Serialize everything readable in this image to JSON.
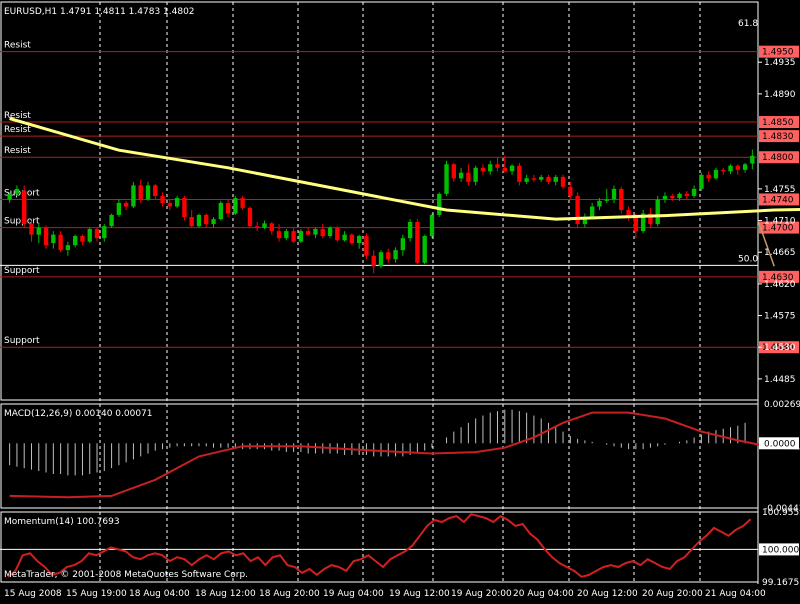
{
  "header": {
    "symbol_info": "EURUSD,H1  1.4791 1.4811 1.4783 1.4802",
    "copyright": "MetaTrader, © 2001-2008 MetaQuotes Software Corp."
  },
  "colors": {
    "background": "#000000",
    "grid": "#ffffff",
    "bull": "#00c000",
    "bear": "#ff0000",
    "sma": "#ffff80",
    "trendline": "#c89860",
    "level_line": "#b02020",
    "macd_hist": "#c0c0c0",
    "macd_signal": "#c82020",
    "momentum": "#d02020",
    "text": "#ffffff",
    "price_tag": "#ff6060",
    "price_tag_text": "#000000"
  },
  "chart_data": [
    {
      "type": "candlestick",
      "panel": "price",
      "ylim": [
        1.4455,
        1.4995
      ],
      "y_ticks": [
        "1.4935",
        "1.4890",
        "1.4755",
        "1.4710",
        "1.4665",
        "1.4620",
        "1.4575",
        "1.4530",
        "1.4485"
      ],
      "fib_labels": [
        "61.8",
        "50.0"
      ],
      "x_ticks": [
        "15 Aug 2008",
        "15 Aug 19:00",
        "18 Aug 04:00",
        "18 Aug 12:00",
        "18 Aug 20:00",
        "19 Aug 04:00",
        "19 Aug 12:00",
        "19 Aug 20:00",
        "20 Aug 04:00",
        "20 Aug 12:00",
        "20 Aug 20:00",
        "21 Aug 04:00"
      ],
      "levels": [
        {
          "label": "Resist",
          "price": 1.495,
          "tag": "1.4950"
        },
        {
          "label": "Resist",
          "price": 1.485,
          "tag": "1.4850"
        },
        {
          "label": "Resist",
          "price": 1.483,
          "tag": "1.4830"
        },
        {
          "label": "Resist",
          "price": 1.48,
          "tag": "1.4800"
        },
        {
          "label": "Support",
          "price": 1.474,
          "tag": "1.4740"
        },
        {
          "label": "Support",
          "price": 1.47,
          "tag": "1.4700"
        },
        {
          "label": "Support",
          "price": 1.463,
          "tag": "1.4630"
        },
        {
          "label": "Support",
          "price": 1.453,
          "tag": "1.4530"
        }
      ],
      "candles": [
        [
          1.474,
          1.475,
          1.4735,
          1.4748
        ],
        [
          1.4748,
          1.476,
          1.4745,
          1.4755
        ],
        [
          1.4752,
          1.476,
          1.47,
          1.4705
        ],
        [
          1.4705,
          1.471,
          1.468,
          1.469
        ],
        [
          1.469,
          1.4705,
          1.4678,
          1.47
        ],
        [
          1.47,
          1.4703,
          1.467,
          1.4675
        ],
        [
          1.4678,
          1.4695,
          1.467,
          1.469
        ],
        [
          1.469,
          1.4695,
          1.4665,
          1.4668
        ],
        [
          1.4668,
          1.468,
          1.466,
          1.4675
        ],
        [
          1.4675,
          1.469,
          1.4672,
          1.4688
        ],
        [
          1.4688,
          1.469,
          1.4675,
          1.468
        ],
        [
          1.468,
          1.47,
          1.4678,
          1.4698
        ],
        [
          1.4698,
          1.47,
          1.468,
          1.4685
        ],
        [
          1.4685,
          1.4705,
          1.468,
          1.4702
        ],
        [
          1.4702,
          1.472,
          1.47,
          1.4718
        ],
        [
          1.4718,
          1.474,
          1.4715,
          1.4735
        ],
        [
          1.4735,
          1.4738,
          1.4725,
          1.473
        ],
        [
          1.473,
          1.4765,
          1.4728,
          1.476
        ],
        [
          1.476,
          1.4768,
          1.4735,
          1.474
        ],
        [
          1.474,
          1.4765,
          1.4738,
          1.476
        ],
        [
          1.476,
          1.4762,
          1.474,
          1.4745
        ],
        [
          1.4745,
          1.475,
          1.473,
          1.4735
        ],
        [
          1.4735,
          1.474,
          1.4725,
          1.473
        ],
        [
          1.473,
          1.4745,
          1.4728,
          1.4742
        ],
        [
          1.4742,
          1.4745,
          1.471,
          1.4715
        ],
        [
          1.4715,
          1.4725,
          1.47,
          1.4702
        ],
        [
          1.4702,
          1.472,
          1.47,
          1.4718
        ],
        [
          1.4718,
          1.472,
          1.47,
          1.4705
        ],
        [
          1.4705,
          1.4715,
          1.47,
          1.4712
        ],
        [
          1.4712,
          1.4738,
          1.471,
          1.4735
        ],
        [
          1.4735,
          1.474,
          1.4715,
          1.472
        ],
        [
          1.472,
          1.4745,
          1.4718,
          1.4742
        ],
        [
          1.4742,
          1.4745,
          1.4725,
          1.4728
        ],
        [
          1.4728,
          1.473,
          1.47,
          1.4702
        ],
        [
          1.4702,
          1.4708,
          1.4695,
          1.47
        ],
        [
          1.47,
          1.471,
          1.4698,
          1.4706
        ],
        [
          1.4706,
          1.4708,
          1.469,
          1.4695
        ],
        [
          1.4695,
          1.4705,
          1.468,
          1.4685
        ],
        [
          1.4685,
          1.4698,
          1.4682,
          1.4695
        ],
        [
          1.4695,
          1.47,
          1.4678,
          1.468
        ],
        [
          1.468,
          1.4698,
          1.4678,
          1.4695
        ],
        [
          1.4695,
          1.47,
          1.4688,
          1.469
        ],
        [
          1.469,
          1.47,
          1.4685,
          1.4698
        ],
        [
          1.4698,
          1.4705,
          1.4685,
          1.4688
        ],
        [
          1.4688,
          1.4702,
          1.4685,
          1.47
        ],
        [
          1.47,
          1.4702,
          1.468,
          1.4682
        ],
        [
          1.4682,
          1.4695,
          1.468,
          1.469
        ],
        [
          1.469,
          1.4692,
          1.4675,
          1.4678
        ],
        [
          1.4678,
          1.469,
          1.467,
          1.4688
        ],
        [
          1.4688,
          1.4692,
          1.4655,
          1.466
        ],
        [
          1.466,
          1.4668,
          1.4635,
          1.4645
        ],
        [
          1.4645,
          1.4668,
          1.4642,
          1.4665
        ],
        [
          1.4665,
          1.467,
          1.465,
          1.4655
        ],
        [
          1.4655,
          1.4672,
          1.465,
          1.4668
        ],
        [
          1.4668,
          1.469,
          1.466,
          1.4685
        ],
        [
          1.4685,
          1.4712,
          1.468,
          1.4708
        ],
        [
          1.4708,
          1.4712,
          1.4648,
          1.465
        ],
        [
          1.465,
          1.469,
          1.4648,
          1.4688
        ],
        [
          1.4688,
          1.472,
          1.4685,
          1.4718
        ],
        [
          1.4718,
          1.475,
          1.4715,
          1.4748
        ],
        [
          1.4748,
          1.4795,
          1.4745,
          1.479
        ],
        [
          1.479,
          1.4792,
          1.4765,
          1.477
        ],
        [
          1.477,
          1.4785,
          1.4765,
          1.4778
        ],
        [
          1.4778,
          1.479,
          1.476,
          1.4765
        ],
        [
          1.4765,
          1.4788,
          1.476,
          1.4785
        ],
        [
          1.4785,
          1.479,
          1.4775,
          1.478
        ],
        [
          1.478,
          1.4795,
          1.4775,
          1.479
        ],
        [
          1.479,
          1.48,
          1.478,
          1.4785
        ],
        [
          1.4785,
          1.4802,
          1.4778,
          1.478
        ],
        [
          1.478,
          1.479,
          1.4775,
          1.4788
        ],
        [
          1.4788,
          1.4792,
          1.476,
          1.4765
        ],
        [
          1.4765,
          1.4775,
          1.4762,
          1.477
        ],
        [
          1.477,
          1.4775,
          1.4765,
          1.4768
        ],
        [
          1.4768,
          1.4775,
          1.4765,
          1.4772
        ],
        [
          1.4772,
          1.4775,
          1.4762,
          1.4765
        ],
        [
          1.4765,
          1.4775,
          1.476,
          1.4772
        ],
        [
          1.4772,
          1.4775,
          1.4755,
          1.4758
        ],
        [
          1.4758,
          1.4765,
          1.474,
          1.4745
        ],
        [
          1.4745,
          1.475,
          1.47,
          1.4705
        ],
        [
          1.4705,
          1.472,
          1.47,
          1.4715
        ],
        [
          1.4715,
          1.4735,
          1.4712,
          1.473
        ],
        [
          1.473,
          1.4742,
          1.4725,
          1.4738
        ],
        [
          1.4738,
          1.4755,
          1.4735,
          1.474
        ],
        [
          1.474,
          1.476,
          1.4735,
          1.4755
        ],
        [
          1.4755,
          1.4758,
          1.472,
          1.4725
        ],
        [
          1.4725,
          1.473,
          1.471,
          1.4715
        ],
        [
          1.4715,
          1.472,
          1.4685,
          1.4695
        ],
        [
          1.4695,
          1.4725,
          1.4692,
          1.472
        ],
        [
          1.472,
          1.4728,
          1.47,
          1.4705
        ],
        [
          1.4705,
          1.4745,
          1.4702,
          1.474
        ],
        [
          1.474,
          1.475,
          1.4735,
          1.4745
        ],
        [
          1.4745,
          1.4748,
          1.4738,
          1.4742
        ],
        [
          1.4742,
          1.475,
          1.4738,
          1.4748
        ],
        [
          1.4748,
          1.4752,
          1.474,
          1.4745
        ],
        [
          1.4745,
          1.476,
          1.4742,
          1.4755
        ],
        [
          1.4755,
          1.4778,
          1.4752,
          1.4775
        ],
        [
          1.4775,
          1.478,
          1.4765,
          1.477
        ],
        [
          1.477,
          1.4785,
          1.4768,
          1.4782
        ],
        [
          1.4782,
          1.4785,
          1.4775,
          1.478
        ],
        [
          1.478,
          1.479,
          1.4776,
          1.4788
        ],
        [
          1.4788,
          1.479,
          1.4775,
          1.4782
        ],
        [
          1.4782,
          1.4792,
          1.4778,
          1.479
        ],
        [
          1.4791,
          1.4811,
          1.4783,
          1.4802
        ]
      ],
      "sma": [
        [
          0,
          1.4855
        ],
        [
          15,
          1.481
        ],
        [
          30,
          1.4785
        ],
        [
          45,
          1.4755
        ],
        [
          60,
          1.4725
        ],
        [
          75,
          1.4712
        ],
        [
          90,
          1.4717
        ],
        [
          105,
          1.4725
        ],
        [
          120,
          1.4728
        ],
        [
          135,
          1.4728
        ],
        [
          150,
          1.4731
        ],
        [
          165,
          1.4733
        ],
        [
          185,
          1.474
        ]
      ],
      "trendline": [
        [
          105,
          1.4645
        ],
        [
          200,
          1.471
        ]
      ]
    },
    {
      "type": "histogram+line",
      "panel": "macd",
      "title": "MACD(12,26,9) 0.00140 0.00071",
      "ylim": [
        -0.00443,
        0.00269
      ],
      "y_ticks": [
        "0.00269",
        "0.0000",
        "-0.00443"
      ],
      "histogram": [
        -0.0015,
        -0.0016,
        -0.0017,
        -0.0018,
        -0.0019,
        -0.002,
        -0.0021,
        -0.0021,
        -0.0022,
        -0.0022,
        -0.0022,
        -0.0021,
        -0.002,
        -0.0019,
        -0.0017,
        -0.0015,
        -0.0013,
        -0.0011,
        -0.0009,
        -0.0007,
        -0.0005,
        -0.0004,
        -0.0003,
        -0.0002,
        -0.0002,
        -0.0002,
        -0.0002,
        -0.0002,
        -0.0003,
        -0.0003,
        -0.0003,
        -0.0003,
        -0.0004,
        -0.0004,
        -0.0004,
        -0.0004,
        -0.0005,
        -0.0005,
        -0.0006,
        -0.0006,
        -0.0006,
        -0.0007,
        -0.0007,
        -0.0007,
        -0.0007,
        -0.0007,
        -0.0008,
        -0.0008,
        -0.0008,
        -0.0008,
        -0.0009,
        -0.0009,
        -0.0009,
        -0.0009,
        -0.0009,
        -0.0008,
        -0.0007,
        -0.0005,
        -0.0003,
        0.0,
        0.0004,
        0.0008,
        0.0011,
        0.0014,
        0.0017,
        0.0019,
        0.0021,
        0.0022,
        0.0023,
        0.0023,
        0.0022,
        0.0021,
        0.0019,
        0.0017,
        0.0014,
        0.0011,
        0.0008,
        0.0005,
        0.0003,
        0.0002,
        0.0001,
        0.0,
        -0.0001,
        -0.0002,
        -0.0003,
        -0.0004,
        -0.0004,
        -0.0004,
        -0.0003,
        -0.0002,
        -0.0001,
        0.0,
        0.0001,
        0.0002,
        0.0004,
        0.0006,
        0.0008,
        0.0009,
        0.001,
        0.0011,
        0.0012,
        0.0014
      ],
      "signal": [
        [
          0,
          -0.0036
        ],
        [
          8,
          -0.0037
        ],
        [
          14,
          -0.0036
        ],
        [
          20,
          -0.0025
        ],
        [
          26,
          -0.0009
        ],
        [
          32,
          -0.0002
        ],
        [
          40,
          -0.0002
        ],
        [
          50,
          -0.0005
        ],
        [
          58,
          -0.0007
        ],
        [
          64,
          -0.0006
        ],
        [
          68,
          -0.0003
        ],
        [
          72,
          0.0004
        ],
        [
          76,
          0.0014
        ],
        [
          80,
          0.0021
        ],
        [
          85,
          0.0021
        ],
        [
          90,
          0.0017
        ],
        [
          95,
          0.0008
        ],
        [
          100,
          0.0002
        ],
        [
          105,
          -0.0003
        ],
        [
          110,
          -0.0004
        ],
        [
          115,
          -0.0004
        ],
        [
          120,
          -0.0003
        ],
        [
          126,
          0.0
        ],
        [
          132,
          0.0004
        ],
        [
          136,
          0.0007
        ]
      ],
      "index_start": 36
    },
    {
      "type": "line",
      "panel": "momentum",
      "title": "Momentum(14) 100.7693",
      "ylim": [
        99.1675,
        100.9552
      ],
      "y_ticks": [
        "100.9552",
        "100.0000",
        "99.1675"
      ],
      "series": [
        {
          "values": [
            99.3,
            99.45,
            99.85,
            99.9,
            99.7,
            99.55,
            99.35,
            99.4,
            99.55,
            99.6,
            99.7,
            99.9,
            99.85,
            99.95,
            100.05,
            100.0,
            99.95,
            99.8,
            99.75,
            99.85,
            99.9,
            99.85,
            99.7,
            99.8,
            99.75,
            99.6,
            99.75,
            99.85,
            99.75,
            99.9,
            99.95,
            99.85,
            99.9,
            99.7,
            99.8,
            99.6,
            99.8,
            99.85,
            99.6,
            99.55,
            99.4,
            99.5,
            99.35,
            99.5,
            99.6,
            99.55,
            99.45,
            99.7,
            99.75,
            99.85,
            99.7,
            99.55,
            99.75,
            99.85,
            99.95,
            100.1,
            100.35,
            100.6,
            100.75,
            100.7,
            100.8,
            100.85,
            100.7,
            100.9,
            100.85,
            100.8,
            100.7,
            100.85,
            100.75,
            100.6,
            100.65,
            100.4,
            100.25,
            100.0,
            99.8,
            99.65,
            99.55,
            99.45,
            99.3,
            99.35,
            99.45,
            99.55,
            99.6,
            99.55,
            99.65,
            99.7,
            99.6,
            99.75,
            99.65,
            99.55,
            99.5,
            99.7,
            99.8,
            100.0,
            100.2,
            100.35,
            100.55,
            100.45,
            100.35,
            100.5,
            100.6,
            100.77
          ]
        }
      ]
    }
  ]
}
